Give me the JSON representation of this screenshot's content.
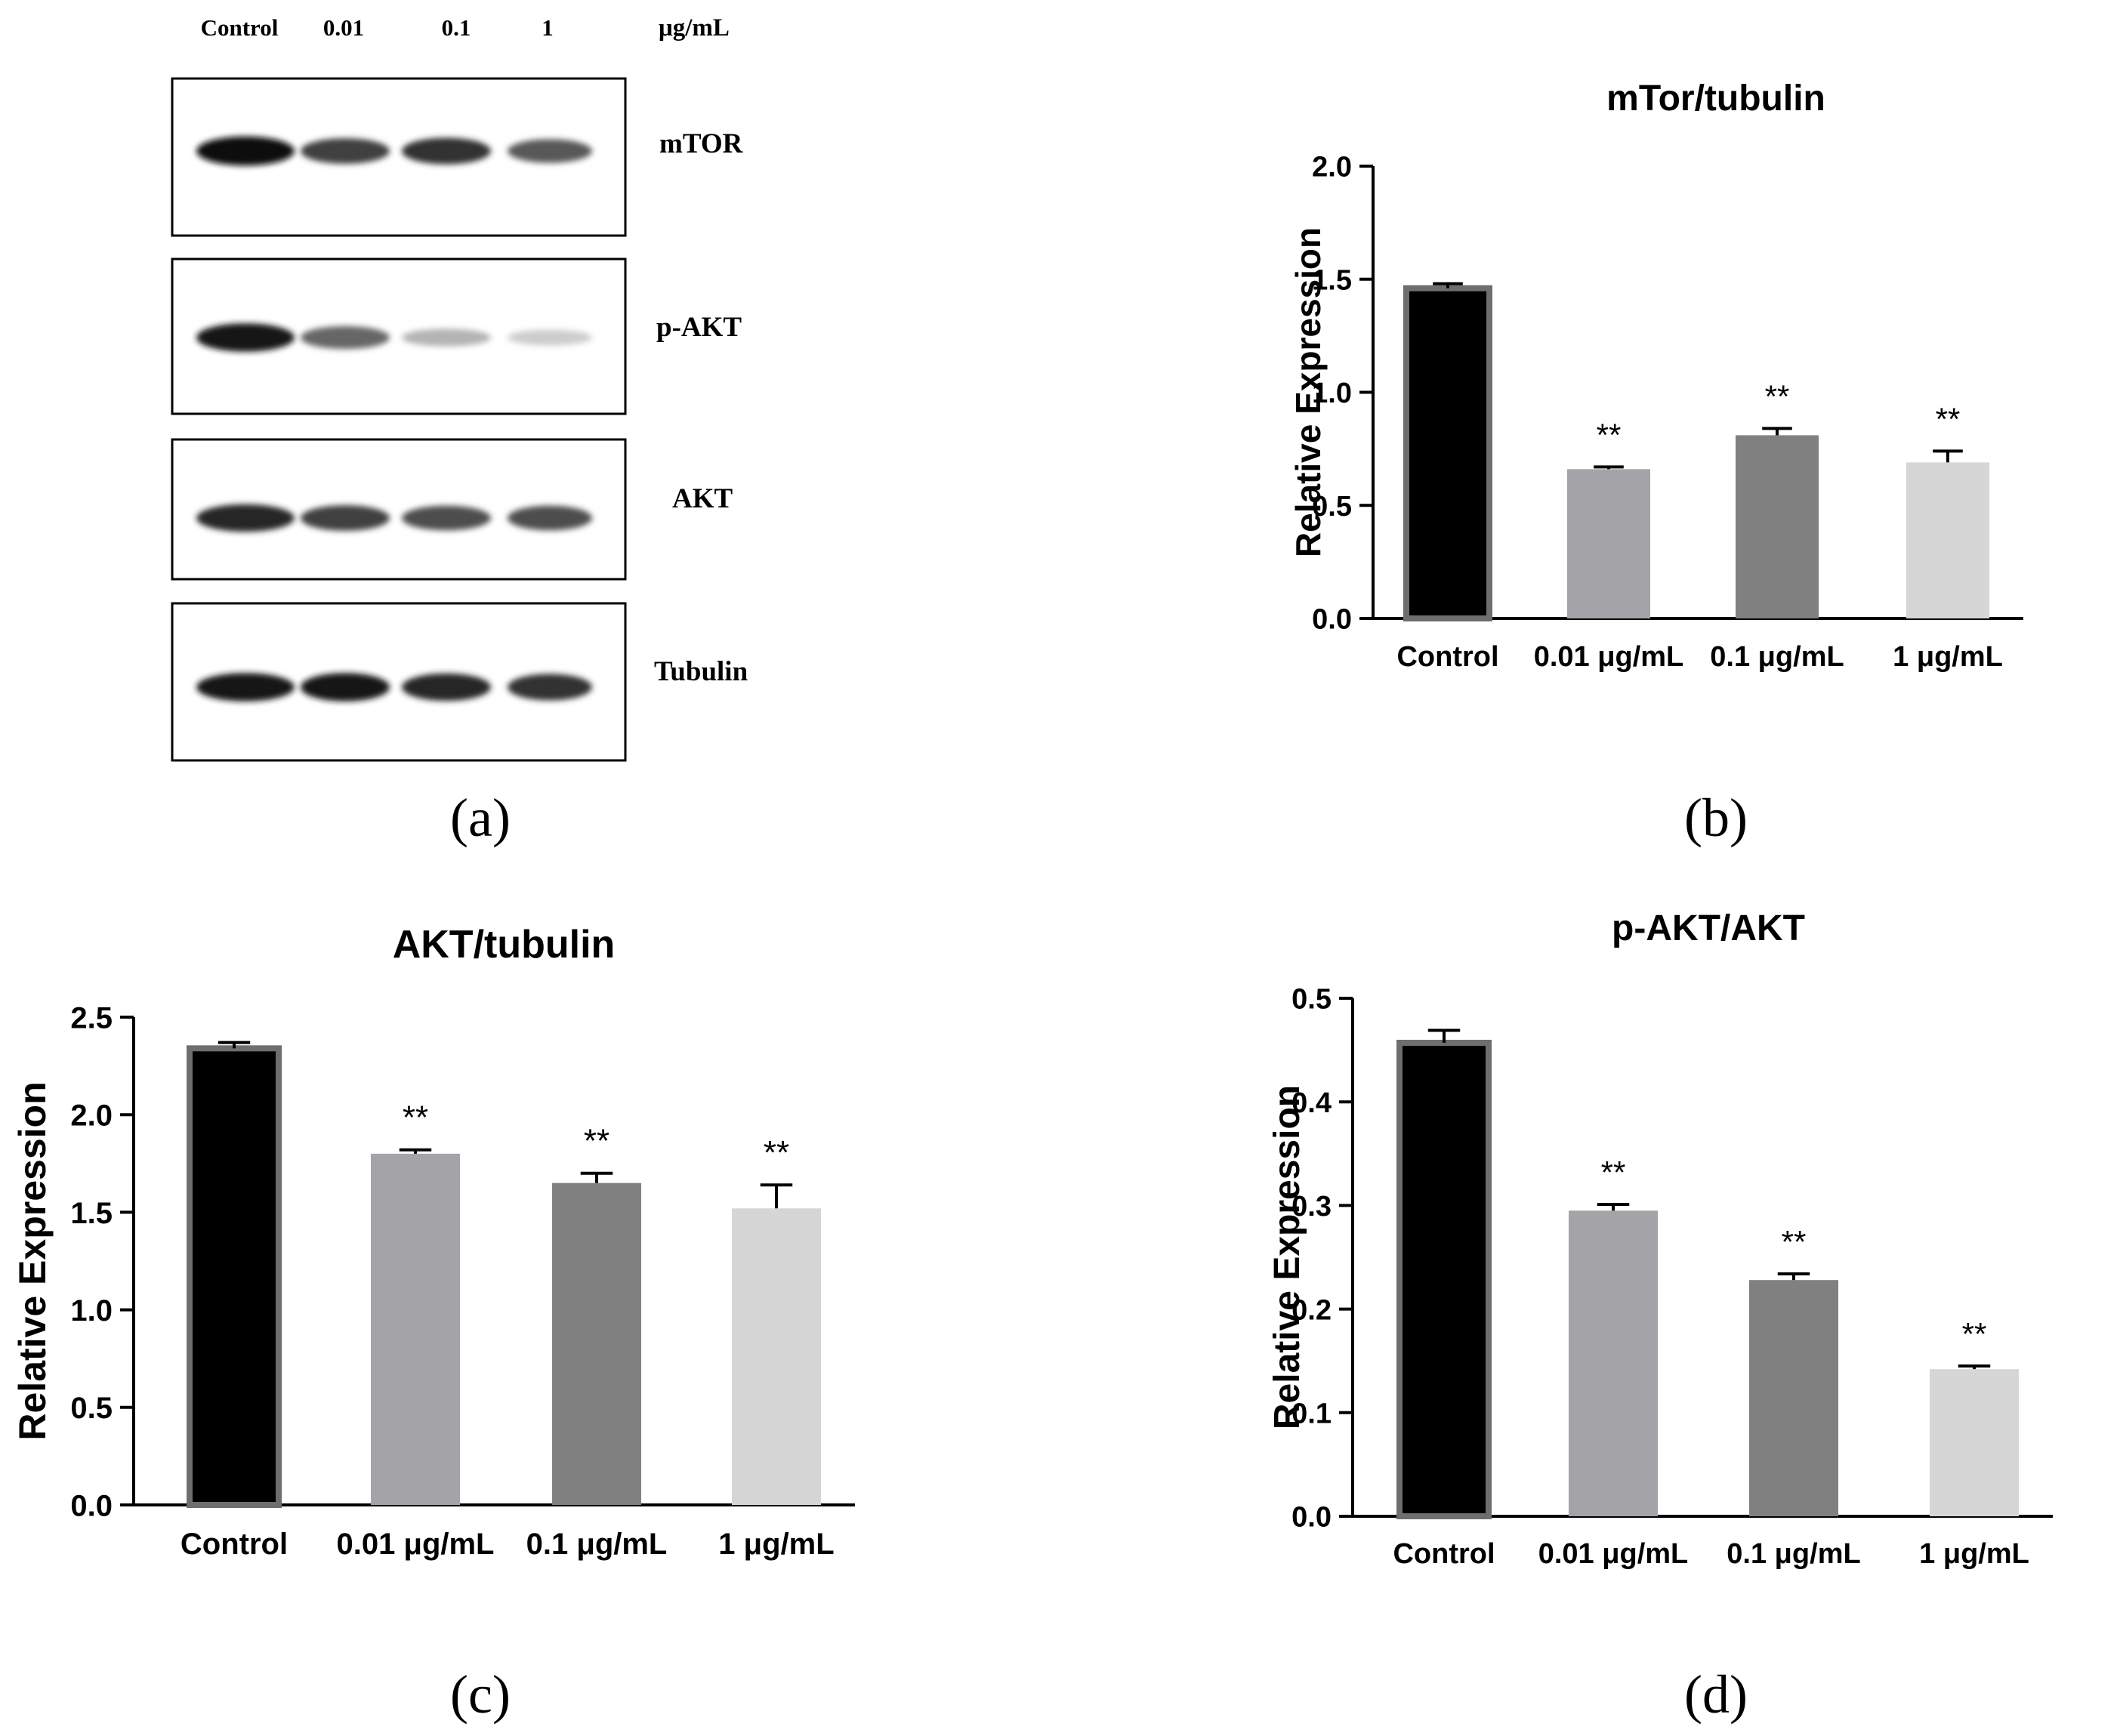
{
  "figure": {
    "panel_labels": [
      "(a)",
      "(b)",
      "(c)",
      "(d)"
    ]
  },
  "blot": {
    "lanes": [
      "Control",
      "0.01",
      "0.1",
      "1"
    ],
    "unit": "μg/mL",
    "rows": [
      {
        "label": "mTOR",
        "intensity": [
          0.95,
          0.75,
          0.8,
          0.65
        ]
      },
      {
        "label": "p-AKT",
        "intensity": [
          0.9,
          0.6,
          0.3,
          0.2
        ]
      },
      {
        "label": "AKT",
        "intensity": [
          0.85,
          0.75,
          0.7,
          0.7
        ]
      },
      {
        "label": "Tubulin",
        "intensity": [
          0.9,
          0.9,
          0.85,
          0.8
        ]
      }
    ]
  },
  "colors": {
    "bars": [
      "#000000",
      "#a4a4a8",
      "#808080",
      "#d6d6d6"
    ],
    "axis": "#000000"
  },
  "chart_data": [
    {
      "type": "bar",
      "panel": "b",
      "title": "mTor/tubulin",
      "ylabel": "Relative Expression",
      "xlabel": "",
      "categories": [
        "Control",
        "0.01 μg/mL",
        "0.1 μg/mL",
        "1 μg/mL"
      ],
      "values": [
        1.46,
        0.66,
        0.81,
        0.69
      ],
      "errors": [
        0.02,
        0.01,
        0.03,
        0.05
      ],
      "annotations": [
        "",
        "**",
        "**",
        "**"
      ],
      "ylim": [
        0,
        2.0
      ],
      "yticks": [
        "0.0",
        "0.5",
        "1.0",
        "1.5",
        "2.0"
      ]
    },
    {
      "type": "bar",
      "panel": "c",
      "title": "AKT/tubulin",
      "ylabel": "Relative Expression",
      "xlabel": "",
      "categories": [
        "Control",
        "0.01 μg/mL",
        "0.1 μg/mL",
        "1 μg/mL"
      ],
      "values": [
        2.34,
        1.8,
        1.65,
        1.52
      ],
      "errors": [
        0.03,
        0.02,
        0.05,
        0.12
      ],
      "annotations": [
        "",
        "**",
        "**",
        "**"
      ],
      "ylim": [
        0,
        2.5
      ],
      "yticks": [
        "0.0",
        "0.5",
        "1.0",
        "1.5",
        "2.0",
        "2.5"
      ]
    },
    {
      "type": "bar",
      "panel": "d",
      "title": "p-AKT/AKT",
      "ylabel": "Relative Expression",
      "xlabel": "",
      "categories": [
        "Control",
        "0.01 μg/mL",
        "0.1 μg/mL",
        "1 μg/mL"
      ],
      "values": [
        0.457,
        0.295,
        0.228,
        0.142
      ],
      "errors": [
        0.012,
        0.006,
        0.006,
        0.003
      ],
      "annotations": [
        "",
        "**",
        "**",
        "**"
      ],
      "ylim": [
        0,
        0.5
      ],
      "yticks": [
        "0.0",
        "0.1",
        "0.2",
        "0.3",
        "0.4",
        "0.5"
      ]
    }
  ]
}
